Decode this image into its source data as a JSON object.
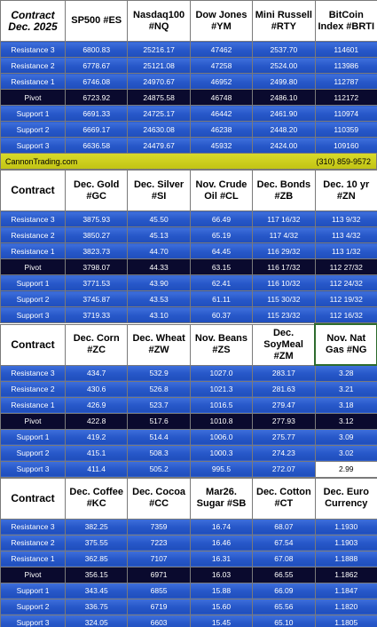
{
  "banner": {
    "site": "CannonTrading.com",
    "phone": "(310) 859-9572"
  },
  "sections": [
    {
      "header_label": "Contract Dec. 2025",
      "columns": [
        "SP500 #ES",
        "Nasdaq100 #NQ",
        "Dow Jones #YM",
        "Mini Russell #RTY",
        "BitCoin Index #BRTI"
      ],
      "rows": [
        {
          "label": "Resistance 3",
          "values": [
            "6800.83",
            "25216.17",
            "47462",
            "2537.70",
            "114601"
          ]
        },
        {
          "label": "Resistance 2",
          "values": [
            "6778.67",
            "25121.08",
            "47258",
            "2524.00",
            "113986"
          ]
        },
        {
          "label": "Resistance 1",
          "values": [
            "6746.08",
            "24970.67",
            "46952",
            "2499.80",
            "112787"
          ]
        },
        {
          "label": "Pivot",
          "values": [
            "6723.92",
            "24875.58",
            "46748",
            "2486.10",
            "112172"
          ]
        },
        {
          "label": "Support 1",
          "values": [
            "6691.33",
            "24725.17",
            "46442",
            "2461.90",
            "110974"
          ]
        },
        {
          "label": "Support 2",
          "values": [
            "6669.17",
            "24630.08",
            "46238",
            "2448.20",
            "110359"
          ]
        },
        {
          "label": "Support 3",
          "values": [
            "6636.58",
            "24479.67",
            "45932",
            "2424.00",
            "109160"
          ]
        }
      ]
    },
    {
      "header_label": "Contract",
      "columns": [
        "Dec. Gold #GC",
        "Dec. Silver #SI",
        "Nov. Crude Oil #CL",
        "Dec. Bonds #ZB",
        "Dec. 10 yr #ZN"
      ],
      "rows": [
        {
          "label": "Resistance 3",
          "values": [
            "3875.93",
            "45.50",
            "66.49",
            "117 16/32",
            "113 9/32"
          ]
        },
        {
          "label": "Resistance 2",
          "values": [
            "3850.27",
            "45.13",
            "65.19",
            "117 4/32",
            "113 4/32"
          ]
        },
        {
          "label": "Resistance 1",
          "values": [
            "3823.73",
            "44.70",
            "64.45",
            "116 29/32",
            "113 1/32"
          ]
        },
        {
          "label": "Pivot",
          "values": [
            "3798.07",
            "44.33",
            "63.15",
            "116 17/32",
            "112 27/32"
          ]
        },
        {
          "label": "Support 1",
          "values": [
            "3771.53",
            "43.90",
            "62.41",
            "116 10/32",
            "112 24/32"
          ]
        },
        {
          "label": "Support 2",
          "values": [
            "3745.87",
            "43.53",
            "61.11",
            "115 30/32",
            "112 19/32"
          ]
        },
        {
          "label": "Support 3",
          "values": [
            "3719.33",
            "43.10",
            "60.37",
            "115 23/32",
            "112 16/32"
          ]
        }
      ]
    },
    {
      "header_label": "Contract",
      "columns": [
        "Dec. Corn #ZC",
        "Dec. Wheat #ZW",
        "Nov. Beans #ZS",
        "Dec. SoyMeal #ZM",
        "Nov. Nat Gas #NG"
      ],
      "rows": [
        {
          "label": "Resistance 3",
          "values": [
            "434.7",
            "532.9",
            "1027.0",
            "283.17",
            "3.28"
          ]
        },
        {
          "label": "Resistance 2",
          "values": [
            "430.6",
            "526.8",
            "1021.3",
            "281.63",
            "3.21"
          ]
        },
        {
          "label": "Resistance 1",
          "values": [
            "426.9",
            "523.7",
            "1016.5",
            "279.47",
            "3.18"
          ]
        },
        {
          "label": "Pivot",
          "values": [
            "422.8",
            "517.6",
            "1010.8",
            "277.93",
            "3.12"
          ]
        },
        {
          "label": "Support 1",
          "values": [
            "419.2",
            "514.4",
            "1006.0",
            "275.77",
            "3.09"
          ]
        },
        {
          "label": "Support 2",
          "values": [
            "415.1",
            "508.3",
            "1000.3",
            "274.23",
            "3.02"
          ]
        },
        {
          "label": "Support 3",
          "values": [
            "411.4",
            "505.2",
            "995.5",
            "272.07",
            "2.99"
          ]
        }
      ]
    },
    {
      "header_label": "Contract",
      "columns": [
        "Dec. Coffee #KC",
        "Dec. Cocoa #CC",
        "Mar26. Sugar #SB",
        "Dec. Cotton #CT",
        "Dec. Euro Currency"
      ],
      "rows": [
        {
          "label": "Resistance 3",
          "values": [
            "382.25",
            "7359",
            "16.74",
            "68.07",
            "1.1930"
          ]
        },
        {
          "label": "Resistance 2",
          "values": [
            "375.55",
            "7223",
            "16.46",
            "67.54",
            "1.1903"
          ]
        },
        {
          "label": "Resistance 1",
          "values": [
            "362.85",
            "7107",
            "16.31",
            "67.08",
            "1.1888"
          ]
        },
        {
          "label": "Pivot",
          "values": [
            "356.15",
            "6971",
            "16.03",
            "66.55",
            "1.1862"
          ]
        },
        {
          "label": "Support 1",
          "values": [
            "343.45",
            "6855",
            "15.88",
            "66.09",
            "1.1847"
          ]
        },
        {
          "label": "Support 2",
          "values": [
            "336.75",
            "6719",
            "15.60",
            "65.56",
            "1.1820"
          ]
        },
        {
          "label": "Support 3",
          "values": [
            "324.05",
            "6603",
            "15.45",
            "65.10",
            "1.1805"
          ]
        }
      ]
    }
  ]
}
